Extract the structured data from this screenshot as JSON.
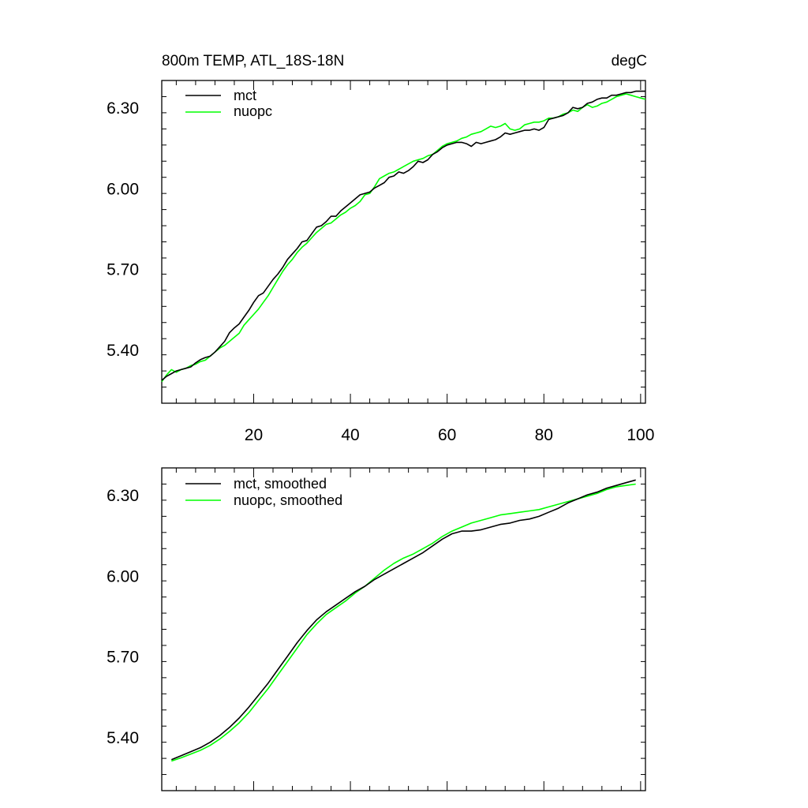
{
  "chart_data": [
    {
      "type": "line",
      "title": "800m TEMP, ATL_18S-18N",
      "units_label": "degC",
      "xlim": [
        1,
        101
      ],
      "ylim": [
        5.2,
        6.4
      ],
      "x_ticks": [
        20,
        40,
        60,
        80,
        100
      ],
      "x_tick_labels": [
        "20",
        "40",
        "60",
        "80",
        "100"
      ],
      "y_ticks": [
        5.4,
        5.7,
        6.0,
        6.3
      ],
      "y_tick_labels": [
        "5.40",
        "5.70",
        "6.00",
        "6.30"
      ],
      "legend_position": "top-left",
      "series": [
        {
          "name": "mct",
          "color": "#000000",
          "x": [
            1,
            2,
            3,
            4,
            5,
            6,
            7,
            8,
            9,
            10,
            11,
            12,
            13,
            14,
            15,
            16,
            17,
            18,
            19,
            20,
            21,
            22,
            23,
            24,
            25,
            26,
            27,
            28,
            29,
            30,
            31,
            32,
            33,
            34,
            35,
            36,
            37,
            38,
            39,
            40,
            41,
            42,
            43,
            44,
            45,
            46,
            47,
            48,
            49,
            50,
            51,
            52,
            53,
            54,
            55,
            56,
            57,
            58,
            59,
            60,
            61,
            62,
            63,
            64,
            65,
            66,
            67,
            68,
            69,
            70,
            71,
            72,
            73,
            74,
            75,
            76,
            77,
            78,
            79,
            80,
            81,
            82,
            83,
            84,
            85,
            86,
            87,
            88,
            89,
            90,
            91,
            92,
            93,
            94,
            95,
            96,
            97,
            98,
            99,
            100,
            101
          ],
          "values": [
            5.285,
            5.3,
            5.31,
            5.32,
            5.325,
            5.33,
            5.335,
            5.35,
            5.362,
            5.37,
            5.375,
            5.39,
            5.41,
            5.43,
            5.462,
            5.48,
            5.495,
            5.52,
            5.545,
            5.575,
            5.6,
            5.61,
            5.635,
            5.66,
            5.68,
            5.705,
            5.735,
            5.755,
            5.775,
            5.8,
            5.805,
            5.83,
            5.855,
            5.86,
            5.875,
            5.895,
            5.895,
            5.915,
            5.93,
            5.945,
            5.96,
            5.975,
            5.98,
            5.985,
            6.0,
            6.01,
            6.02,
            6.04,
            6.045,
            6.06,
            6.055,
            6.065,
            6.08,
            6.1,
            6.095,
            6.105,
            6.125,
            6.135,
            6.15,
            6.16,
            6.165,
            6.17,
            6.17,
            6.165,
            6.155,
            6.17,
            6.165,
            6.17,
            6.175,
            6.18,
            6.19,
            6.205,
            6.2,
            6.205,
            6.21,
            6.215,
            6.215,
            6.22,
            6.215,
            6.225,
            6.255,
            6.26,
            6.265,
            6.27,
            6.28,
            6.3,
            6.295,
            6.3,
            6.315,
            6.32,
            6.33,
            6.335,
            6.335,
            6.345,
            6.345,
            6.35,
            6.355,
            6.355,
            6.36,
            6.36,
            6.36
          ]
        },
        {
          "name": "nuopc",
          "color": "#00ff00",
          "x": [
            1,
            2,
            3,
            4,
            5,
            6,
            7,
            8,
            9,
            10,
            11,
            12,
            13,
            14,
            15,
            16,
            17,
            18,
            19,
            20,
            21,
            22,
            23,
            24,
            25,
            26,
            27,
            28,
            29,
            30,
            31,
            32,
            33,
            34,
            35,
            36,
            37,
            38,
            39,
            40,
            41,
            42,
            43,
            44,
            45,
            46,
            47,
            48,
            49,
            50,
            51,
            52,
            53,
            54,
            55,
            56,
            57,
            58,
            59,
            60,
            61,
            62,
            63,
            64,
            65,
            66,
            67,
            68,
            69,
            70,
            71,
            72,
            73,
            74,
            75,
            76,
            77,
            78,
            79,
            80,
            81,
            82,
            83,
            84,
            85,
            86,
            87,
            88,
            89,
            90,
            91,
            92,
            93,
            94,
            95,
            96,
            97,
            98,
            99,
            100,
            101
          ],
          "values": [
            5.28,
            5.305,
            5.325,
            5.315,
            5.325,
            5.33,
            5.34,
            5.345,
            5.355,
            5.36,
            5.375,
            5.39,
            5.405,
            5.415,
            5.43,
            5.445,
            5.46,
            5.49,
            5.51,
            5.53,
            5.55,
            5.575,
            5.6,
            5.63,
            5.66,
            5.69,
            5.715,
            5.735,
            5.76,
            5.78,
            5.795,
            5.815,
            5.835,
            5.85,
            5.865,
            5.87,
            5.885,
            5.9,
            5.91,
            5.925,
            5.935,
            5.95,
            5.975,
            5.98,
            6.005,
            6.035,
            6.045,
            6.055,
            6.06,
            6.07,
            6.08,
            6.09,
            6.1,
            6.105,
            6.11,
            6.12,
            6.125,
            6.14,
            6.155,
            6.165,
            6.17,
            6.175,
            6.185,
            6.19,
            6.2,
            6.205,
            6.21,
            6.22,
            6.23,
            6.225,
            6.23,
            6.24,
            6.22,
            6.215,
            6.22,
            6.235,
            6.24,
            6.245,
            6.245,
            6.25,
            6.26,
            6.26,
            6.265,
            6.275,
            6.28,
            6.29,
            6.285,
            6.3,
            6.31,
            6.3,
            6.305,
            6.315,
            6.32,
            6.33,
            6.34,
            6.345,
            6.35,
            6.345,
            6.34,
            6.335,
            6.33
          ]
        }
      ]
    },
    {
      "type": "line",
      "xlim": [
        1,
        101
      ],
      "ylim": [
        5.2,
        6.4
      ],
      "x_ticks": [
        20,
        40,
        60,
        80,
        100
      ],
      "y_ticks": [
        5.4,
        5.7,
        6.0,
        6.3
      ],
      "y_tick_labels": [
        "5.40",
        "5.70",
        "6.00",
        "6.30"
      ],
      "legend_position": "top-left",
      "series": [
        {
          "name": "mct, smoothed",
          "color": "#000000",
          "x": [
            3,
            5,
            7,
            9,
            11,
            13,
            15,
            17,
            19,
            21,
            23,
            25,
            27,
            29,
            31,
            33,
            35,
            37,
            39,
            41,
            43,
            45,
            47,
            49,
            51,
            53,
            55,
            57,
            59,
            61,
            63,
            65,
            67,
            69,
            71,
            73,
            75,
            77,
            79,
            81,
            83,
            85,
            87,
            89,
            91,
            93,
            95,
            97,
            99
          ],
          "values": [
            5.315,
            5.33,
            5.345,
            5.36,
            5.38,
            5.405,
            5.435,
            5.47,
            5.51,
            5.555,
            5.6,
            5.65,
            5.7,
            5.75,
            5.795,
            5.835,
            5.865,
            5.89,
            5.915,
            5.94,
            5.96,
            5.985,
            6.005,
            6.025,
            6.045,
            6.065,
            6.085,
            6.11,
            6.135,
            6.155,
            6.165,
            6.165,
            6.17,
            6.18,
            6.19,
            6.195,
            6.205,
            6.21,
            6.22,
            6.235,
            6.25,
            6.27,
            6.285,
            6.3,
            6.31,
            6.325,
            6.335,
            6.345,
            6.355
          ]
        },
        {
          "name": "nuopc, smoothed",
          "color": "#00ff00",
          "x": [
            3,
            5,
            7,
            9,
            11,
            13,
            15,
            17,
            19,
            21,
            23,
            25,
            27,
            29,
            31,
            33,
            35,
            37,
            39,
            41,
            43,
            45,
            47,
            49,
            51,
            53,
            55,
            57,
            59,
            61,
            63,
            65,
            67,
            69,
            71,
            73,
            75,
            77,
            79,
            81,
            83,
            85,
            87,
            89,
            91,
            93,
            95,
            97,
            99
          ],
          "values": [
            5.31,
            5.322,
            5.336,
            5.35,
            5.368,
            5.392,
            5.42,
            5.452,
            5.49,
            5.535,
            5.58,
            5.63,
            5.68,
            5.73,
            5.78,
            5.82,
            5.855,
            5.88,
            5.905,
            5.935,
            5.96,
            5.99,
            6.02,
            6.045,
            6.065,
            6.08,
            6.1,
            6.12,
            6.145,
            6.165,
            6.18,
            6.195,
            6.205,
            6.215,
            6.225,
            6.23,
            6.235,
            6.24,
            6.245,
            6.255,
            6.265,
            6.275,
            6.285,
            6.295,
            6.305,
            6.32,
            6.33,
            6.335,
            6.34
          ]
        }
      ]
    }
  ]
}
